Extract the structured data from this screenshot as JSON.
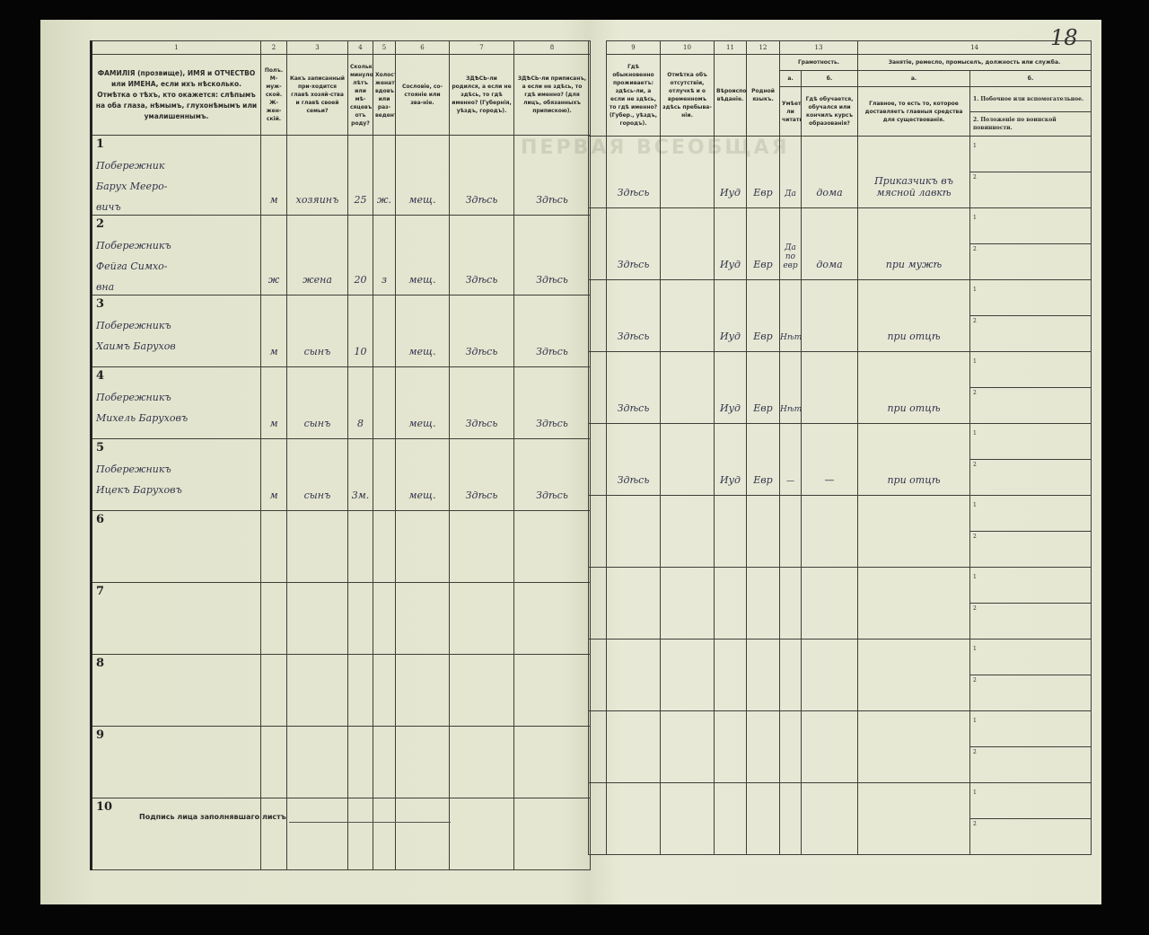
{
  "page_number": "18",
  "watermark": "ПЕРВАЯ ВСЕОБЩАЯ",
  "footer": {
    "signature_label": "Подпись лица заполнявшаго листъ"
  },
  "columns": {
    "numbers": [
      "1",
      "2",
      "3",
      "4",
      "5",
      "6",
      "7",
      "8",
      "9",
      "10",
      "11",
      "12",
      "13",
      "14"
    ],
    "c1": "ФАМИЛІЯ (прозвище), ИМЯ и ОТЧЕСТВО или ИМЕНА, если ихъ нѣсколько. Отмѣтка о тѣхъ, кто окажется: слѣпымъ на оба глаза, нѣмымъ, глухонѣмымъ или умалишеннымъ.",
    "c2": "Полъ. М-муж-ской. Ж-жен-скій.",
    "c3": "Какъ записанный при-ходится главѣ хозяй-ства и главѣ своей семьи?",
    "c4": "Сколько минуло лѣтъ или мѣ-сяцевъ отъ роду?",
    "c5": "Холостъ, женатъ, вдовъ или раз-веденъ.",
    "c6": "Сословіе, со-стояніе или зва-ніе.",
    "c7": "ЗДѢСЬ-ли родился, а если не здѣсь, то гдѣ именно? (Губернія, уѣздъ, городъ).",
    "c8": "ЗДѢСЬ-ли приписанъ, а если не здѣсь, то гдѣ именно? (для лицъ, обязанныхъ припискою).",
    "c9": "Гдѣ обыкновенно проживаетъ: здѣсь-ли, а если не здѣсь, то гдѣ именно? (Губер., уѣздъ, городъ).",
    "c10": "Отмѣтка объ отсутствіи, отлучкѣ и о временномъ здѣсь пребыва-ніи.",
    "c11": "Вѣроиспо-вѣданіе.",
    "c12": "Родной языкъ.",
    "c13": "Грамотность.",
    "c13a_label": "а.",
    "c13a": "Умѣетъ-ли читать?",
    "c13b_label": "б.",
    "c13b": "Гдѣ обучается, обучался или кончилъ курсъ образованія?",
    "c14": "Занятіе, ремесло, промыселъ, должность или служба.",
    "c14a_label": "а.",
    "c14a": "Главное, то есть то, которое доставляетъ главныя средства для существованія.",
    "c14b_label": "б.",
    "c14b1": "1. Побочное или вспомогательное.",
    "c14b2": "2. Положеніе по воинской повинности."
  },
  "rows": [
    {
      "n": "1",
      "name": [
        "Побережник",
        "Барух Мееро-",
        "вичъ"
      ],
      "sex": "м",
      "relation": "хозяинъ",
      "age": "25",
      "marital": "ж.",
      "estate": "мещ.",
      "born": "Здѣсь",
      "registered": "Здѣсь",
      "resides": "Здѣсь",
      "absence": "",
      "religion": "Иуд",
      "language": "Евр",
      "literate": "Да",
      "education": "дома",
      "occupation": "Приказчикъ въ мясной лавкѣ",
      "sub1": "1",
      "sub2": "2"
    },
    {
      "n": "2",
      "name": [
        "Побережникъ",
        "Фейга Симхо-",
        "вна"
      ],
      "sex": "ж",
      "relation": "жена",
      "age": "20",
      "marital": "з",
      "estate": "мещ.",
      "born": "Здѣсь",
      "registered": "Здѣсь",
      "resides": "Здѣсь",
      "absence": "",
      "religion": "Иуд",
      "language": "Евр",
      "literate": "Да по евр",
      "education": "дома",
      "occupation": "при мужѣ",
      "sub1": "1",
      "sub2": "2"
    },
    {
      "n": "3",
      "name": [
        "Побережникъ",
        "Хаимъ Барухов"
      ],
      "sex": "м",
      "relation": "сынъ",
      "age": "10",
      "marital": "",
      "estate": "мещ.",
      "born": "Здѣсь",
      "registered": "Здѣсь",
      "resides": "Здѣсь",
      "absence": "",
      "religion": "Иуд",
      "language": "Евр",
      "literate": "Нѣтъ",
      "education": "",
      "occupation": "при отцѣ",
      "sub1": "1",
      "sub2": "2"
    },
    {
      "n": "4",
      "name": [
        "Побережникъ",
        "Михель Баруховъ"
      ],
      "sex": "м",
      "relation": "сынъ",
      "age": "8",
      "marital": "",
      "estate": "мещ.",
      "born": "Здѣсь",
      "registered": "Здѣсь",
      "resides": "Здѣсь",
      "absence": "",
      "religion": "Иуд",
      "language": "Евр",
      "literate": "Нѣтъ",
      "education": "",
      "occupation": "при отцѣ",
      "sub1": "1",
      "sub2": "2"
    },
    {
      "n": "5",
      "name": [
        "Побережникъ",
        "Ицекъ Баруховъ"
      ],
      "sex": "м",
      "relation": "сынъ",
      "age": "3м.",
      "marital": "",
      "estate": "мещ.",
      "born": "Здѣсь",
      "registered": "Здѣсь",
      "resides": "Здѣсь",
      "absence": "",
      "religion": "Иуд",
      "language": "Евр",
      "literate": "—",
      "education": "—",
      "occupation": "при отцѣ",
      "sub1": "1",
      "sub2": "2"
    },
    {
      "n": "6",
      "name": [],
      "sub1": "1",
      "sub2": "2"
    },
    {
      "n": "7",
      "name": [],
      "sub1": "1",
      "sub2": "2"
    },
    {
      "n": "8",
      "name": [],
      "sub1": "1",
      "sub2": "2"
    },
    {
      "n": "9",
      "name": [],
      "sub1": "1",
      "sub2": "2"
    },
    {
      "n": "10",
      "name": [],
      "sub1": "1",
      "sub2": "2"
    }
  ]
}
